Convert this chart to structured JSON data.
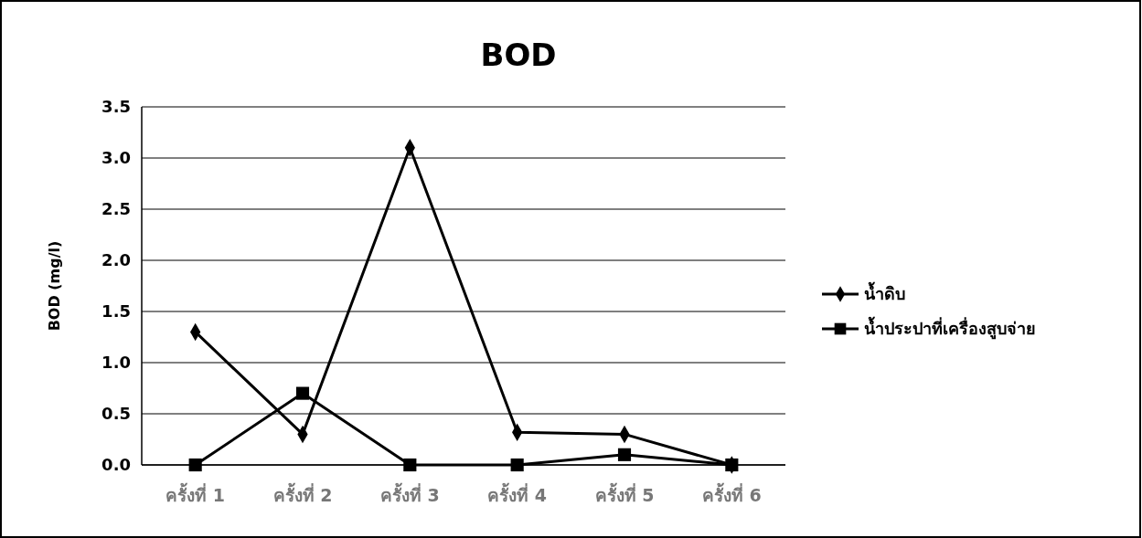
{
  "chart_data": {
    "type": "line",
    "title": "BOD",
    "ylabel": "BOD (mg/l)",
    "categories": [
      "ครั้งที่ 1",
      "ครั้งที่ 2",
      "ครั้งที่ 3",
      "ครั้งที่ 4",
      "ครั้งที่ 5",
      "ครั้งที่ 6"
    ],
    "series": [
      {
        "name": "น้ำดิบ",
        "color": "#000000",
        "marker": "diamond",
        "values": [
          1.3,
          0.3,
          3.1,
          0.32,
          0.3,
          0
        ]
      },
      {
        "name": "น้ำประปาที่เครื่องสูบจ่าย",
        "color": "#000000",
        "marker": "square",
        "values": [
          0,
          0.7,
          0,
          0,
          0.1,
          0
        ]
      }
    ],
    "ylim": [
      0,
      3.5
    ],
    "yticks": [
      {
        "value": 0,
        "label": "0.0"
      },
      {
        "value": 0.5,
        "label": "0.5"
      },
      {
        "value": 1,
        "label": "1.0"
      },
      {
        "value": 1.5,
        "label": "1.5"
      },
      {
        "value": 2,
        "label": "2.0"
      },
      {
        "value": 2.5,
        "label": "2.5"
      },
      {
        "value": 3,
        "label": "3.0"
      },
      {
        "value": 3.5,
        "label": "3.5"
      }
    ],
    "grid": "y",
    "legend": "right"
  }
}
